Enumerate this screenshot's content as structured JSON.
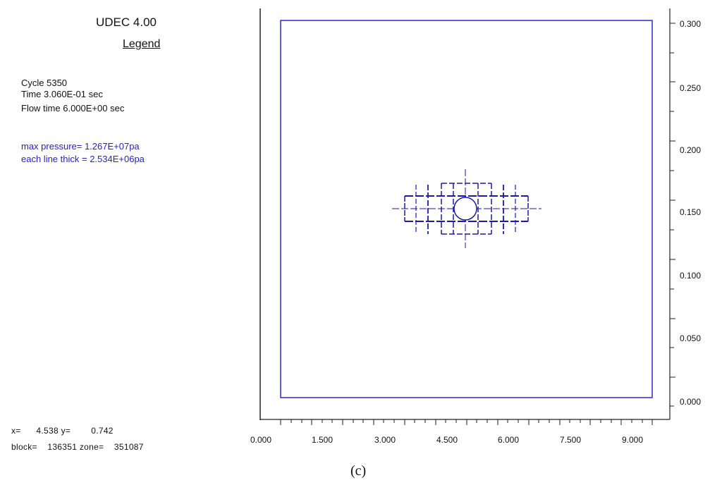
{
  "header": {
    "app_title": "UDEC 4.00",
    "legend_label": "Legend"
  },
  "info": {
    "cycle": "Cycle    5350",
    "time": "Time  3.060E-01 sec",
    "flow_time": "Flow time 6.000E+00 sec",
    "max_pressure": "max pressure= 1.267E+07pa",
    "line_thick": "each line thick = 2.534E+06pa"
  },
  "status": {
    "coords": "x=      4.538 y=        0.742",
    "block_zone": "block=    136351 zone=    351087"
  },
  "caption": "(c)",
  "colors": {
    "plot_blue": "#2222cc",
    "axis": "#222222"
  },
  "axes": {
    "x_ticks": [
      "0.000",
      "1.500",
      "3.000",
      "4.500",
      "6.000",
      "7.500",
      "9.000"
    ],
    "y_ticks": [
      "0.300",
      "0.250",
      "0.200",
      "0.150",
      "0.100",
      "0.050",
      "0.000"
    ]
  }
}
